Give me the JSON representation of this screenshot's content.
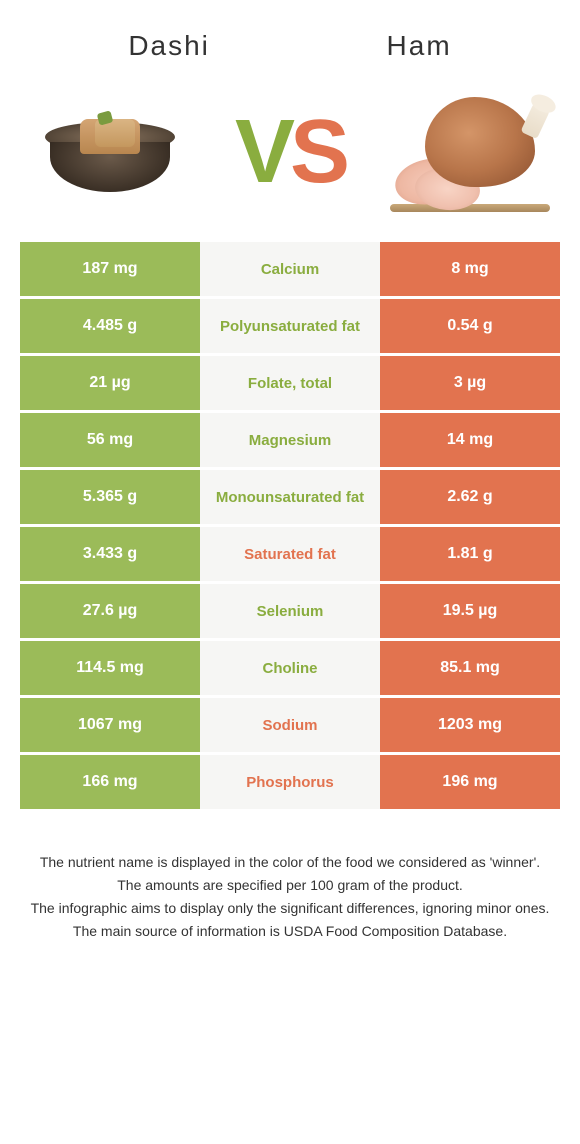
{
  "header": {
    "left_title": "Dashi",
    "right_title": "Ham",
    "vs_v": "V",
    "vs_s": "S"
  },
  "colors": {
    "left": "#9bbb59",
    "right": "#e2734f",
    "mid_bg": "#f6f6f4",
    "left_winner_text": "#8aad3f",
    "right_winner_text": "#e2734f"
  },
  "rows": [
    {
      "left": "187 mg",
      "label": "Calcium",
      "right": "8 mg",
      "winner": "left"
    },
    {
      "left": "4.485 g",
      "label": "Polyunsaturated fat",
      "right": "0.54 g",
      "winner": "left"
    },
    {
      "left": "21 µg",
      "label": "Folate, total",
      "right": "3 µg",
      "winner": "left"
    },
    {
      "left": "56 mg",
      "label": "Magnesium",
      "right": "14 mg",
      "winner": "left"
    },
    {
      "left": "5.365 g",
      "label": "Monounsaturated fat",
      "right": "2.62 g",
      "winner": "left"
    },
    {
      "left": "3.433 g",
      "label": "Saturated fat",
      "right": "1.81 g",
      "winner": "right"
    },
    {
      "left": "27.6 µg",
      "label": "Selenium",
      "right": "19.5 µg",
      "winner": "left"
    },
    {
      "left": "114.5 mg",
      "label": "Choline",
      "right": "85.1 mg",
      "winner": "left"
    },
    {
      "left": "1067 mg",
      "label": "Sodium",
      "right": "1203 mg",
      "winner": "right"
    },
    {
      "left": "166 mg",
      "label": "Phosphorus",
      "right": "196 mg",
      "winner": "right"
    }
  ],
  "footer": {
    "line1": "The nutrient name is displayed in the color of the food we considered as 'winner'.",
    "line2": "The amounts are specified per 100 gram of the product.",
    "line3": "The infographic aims to display only the significant differences, ignoring minor ones.",
    "line4": "The main source of information is USDA Food Composition Database."
  }
}
